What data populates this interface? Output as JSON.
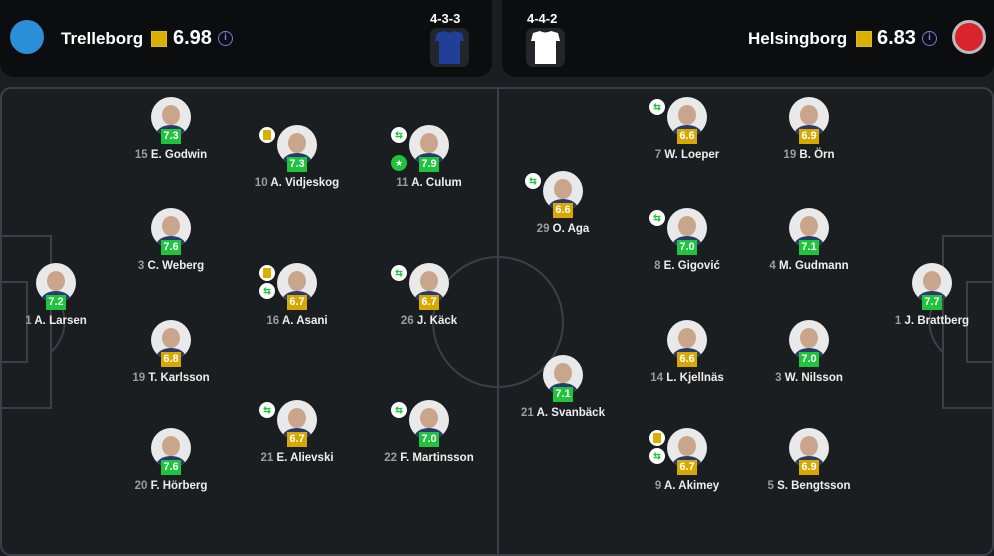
{
  "home": {
    "name": "Trelleborg",
    "rating": "6.98",
    "formation": "4-3-3",
    "kit_color": "#1f3f99",
    "info_icon": "info-icon"
  },
  "away": {
    "name": "Helsingborg",
    "rating": "6.83",
    "formation": "4-4-2",
    "kit_color": "#ffffff",
    "info_icon": "info-icon"
  },
  "colors": {
    "good": "#1ec43c",
    "average": "#d9a800"
  },
  "home_players": [
    {
      "num": "1",
      "name": "A. Larsen",
      "rating": "7.2",
      "level": "g",
      "events": []
    },
    {
      "num": "15",
      "name": "E. Godwin",
      "rating": "7.3",
      "level": "g",
      "events": []
    },
    {
      "num": "3",
      "name": "C. Weberg",
      "rating": "7.6",
      "level": "g",
      "events": []
    },
    {
      "num": "19",
      "name": "T. Karlsson",
      "rating": "6.8",
      "level": "y",
      "events": []
    },
    {
      "num": "20",
      "name": "F. Hörberg",
      "rating": "7.6",
      "level": "g",
      "events": []
    },
    {
      "num": "10",
      "name": "A. Vidjeskog",
      "rating": "7.3",
      "level": "g",
      "events": [
        "card"
      ]
    },
    {
      "num": "16",
      "name": "A. Asani",
      "rating": "6.7",
      "level": "y",
      "events": [
        "card",
        "sub"
      ]
    },
    {
      "num": "21",
      "name": "E. Alievski",
      "rating": "6.7",
      "level": "y",
      "events": [
        "sub"
      ]
    },
    {
      "num": "11",
      "name": "A. Culum",
      "rating": "7.9",
      "level": "g",
      "events": [
        "sub",
        "star"
      ]
    },
    {
      "num": "26",
      "name": "J. Käck",
      "rating": "6.7",
      "level": "y",
      "events": [
        "sub"
      ]
    },
    {
      "num": "22",
      "name": "F. Martinsson",
      "rating": "7.0",
      "level": "g",
      "events": [
        "sub"
      ]
    }
  ],
  "away_players": [
    {
      "num": "29",
      "name": "O. Aga",
      "rating": "6.6",
      "level": "y",
      "events": [
        "sub"
      ]
    },
    {
      "num": "21",
      "name": "A. Svanbäck",
      "rating": "7.1",
      "level": "g",
      "events": []
    },
    {
      "num": "7",
      "name": "W. Loeper",
      "rating": "6.6",
      "level": "y",
      "events": [
        "sub"
      ]
    },
    {
      "num": "8",
      "name": "E. Gigović",
      "rating": "7.0",
      "level": "g",
      "events": [
        "sub"
      ]
    },
    {
      "num": "14",
      "name": "L. Kjellnäs",
      "rating": "6.6",
      "level": "y",
      "events": []
    },
    {
      "num": "9",
      "name": "A. Akimey",
      "rating": "6.7",
      "level": "y",
      "events": [
        "card",
        "sub"
      ]
    },
    {
      "num": "19",
      "name": "B. Örn",
      "rating": "6.9",
      "level": "y",
      "events": []
    },
    {
      "num": "4",
      "name": "M. Gudmann",
      "rating": "7.1",
      "level": "g",
      "events": []
    },
    {
      "num": "3",
      "name": "W. Nilsson",
      "rating": "7.0",
      "level": "g",
      "events": []
    },
    {
      "num": "5",
      "name": "S. Bengtsson",
      "rating": "6.9",
      "level": "y",
      "events": []
    },
    {
      "num": "1",
      "name": "J. Brattberg",
      "rating": "7.7",
      "level": "g",
      "events": []
    }
  ]
}
